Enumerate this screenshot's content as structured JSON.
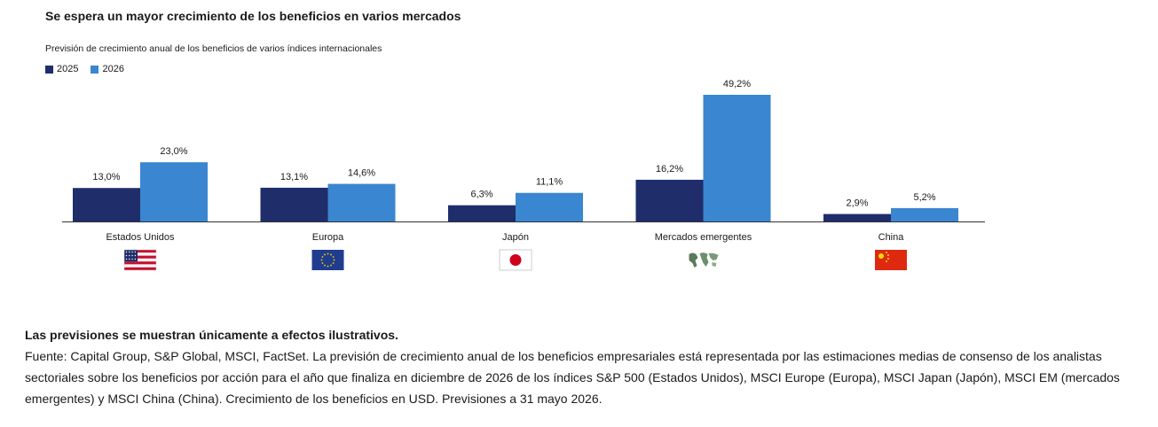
{
  "header": {
    "title": "Se espera un mayor crecimiento de los beneficios en varios mercados",
    "subtitle": "Previsión de crecimiento anual de los beneficios de varios índices internacionales"
  },
  "legend": [
    {
      "label": "2025",
      "color": "#1f2d6b"
    },
    {
      "label": "2026",
      "color": "#3a86d0"
    }
  ],
  "chart_data": {
    "type": "bar",
    "categories": [
      "Estados Unidos",
      "Europa",
      "Japón",
      "Mercados emergentes",
      "China"
    ],
    "series": [
      {
        "name": "2025",
        "values": [
          13.0,
          13.1,
          6.3,
          16.2,
          2.9
        ],
        "labels": [
          "13,0%",
          "13,1%",
          "6,3%",
          "16,2%",
          "2,9%"
        ],
        "color": "#1f2d6b"
      },
      {
        "name": "2026",
        "values": [
          23.0,
          14.6,
          11.1,
          49.2,
          5.2
        ],
        "labels": [
          "23,0%",
          "14,6%",
          "11,1%",
          "49,2%",
          "5,2%"
        ],
        "color": "#3a86d0"
      }
    ],
    "ylim": [
      0,
      49.2
    ],
    "grid": false,
    "legend_position": "top-left",
    "flags": [
      "us-flag-icon",
      "eu-flag-icon",
      "japan-flag-icon",
      "world-map-icon",
      "china-flag-icon"
    ]
  },
  "notes": {
    "disclaimer": "Las previsiones se muestran únicamente a efectos ilustrativos.",
    "source": "Fuente: Capital Group, S&P Global, MSCI, FactSet. La previsión de crecimiento anual de los beneficios empresariales está representada por las estimaciones medias de consenso de los analistas sectoriales sobre los beneficios por acción para el año que finaliza en diciembre de 2026 de los índices S&P 500 (Estados Unidos), MSCI Europe (Europa), MSCI Japan (Japón), MSCI EM (mercados emergentes) y MSCI China (China). Crecimiento de los beneficios en USD. Previsiones a 31 mayo 2026."
  }
}
